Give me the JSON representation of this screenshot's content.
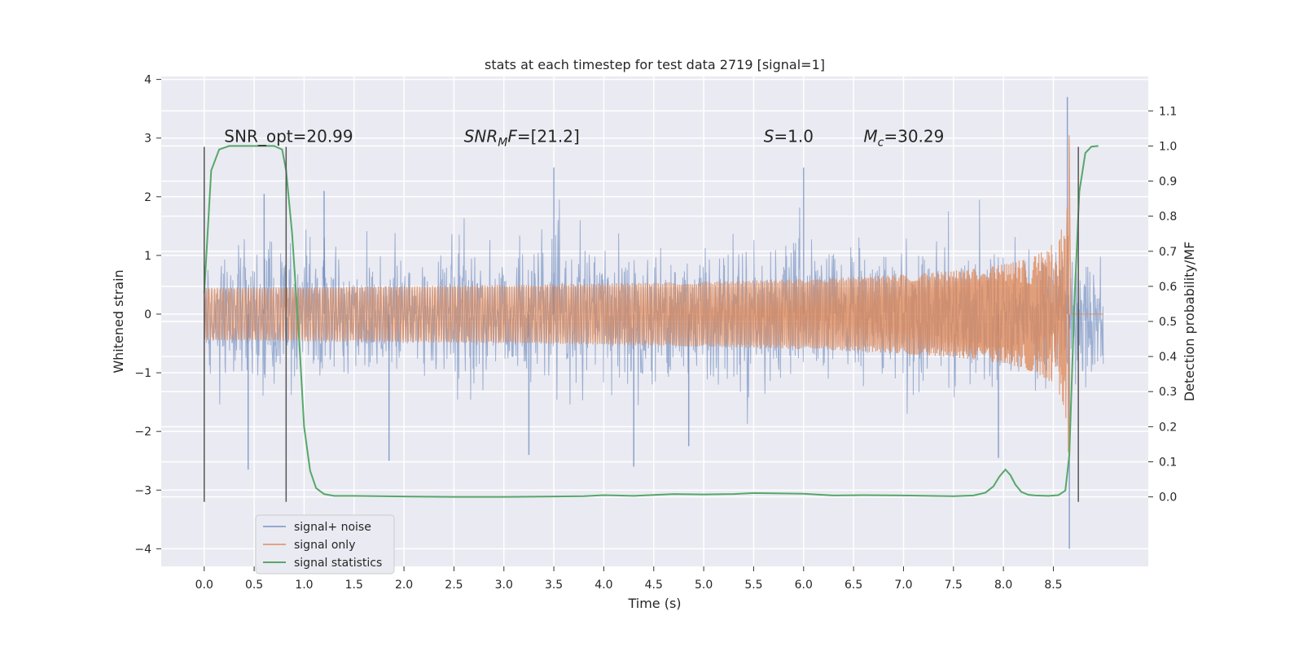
{
  "chart_data": {
    "type": "line",
    "title": "stats at each timestep for test data 2719 [signal=1]",
    "xlabel": "Time (s)",
    "ylabel": "Whitened strain",
    "y2label": "Detection probability/MF",
    "xlim": [
      -0.43,
      9.45
    ],
    "ylim": [
      -4.3,
      4.05
    ],
    "y2lim": [
      -0.198,
      1.198
    ],
    "x_ticks": [
      0.0,
      0.5,
      1.0,
      1.5,
      2.0,
      2.5,
      3.0,
      3.5,
      4.0,
      4.5,
      5.0,
      5.5,
      6.0,
      6.5,
      7.0,
      7.5,
      8.0,
      8.5
    ],
    "x_tick_labels": [
      "0.0",
      "0.5",
      "1.0",
      "1.5",
      "2.0",
      "2.5",
      "3.0",
      "3.5",
      "4.0",
      "4.5",
      "5.0",
      "5.5",
      "6.0",
      "6.5",
      "7.0",
      "7.5",
      "8.0",
      "8.5"
    ],
    "y_ticks": [
      -4,
      -3,
      -2,
      -1,
      0,
      1,
      2,
      3,
      4
    ],
    "y_tick_labels": [
      "−4",
      "−3",
      "−2",
      "−1",
      "0",
      "1",
      "2",
      "3",
      "4"
    ],
    "y2_ticks": [
      0.0,
      0.1,
      0.2,
      0.3,
      0.4,
      0.5,
      0.6,
      0.7,
      0.8,
      0.9,
      1.0,
      1.1
    ],
    "y2_tick_labels": [
      "0.0",
      "0.1",
      "0.2",
      "0.3",
      "0.4",
      "0.5",
      "0.6",
      "0.7",
      "0.8",
      "0.9",
      "1.0",
      "1.1"
    ],
    "grid": true,
    "legend_position": "lower-left",
    "annotations": [
      {
        "html": "SNR_opt=20.99",
        "x": 0.2,
        "y": 2.93
      },
      {
        "html": "<tspan font-style='italic'>SNR</tspan><tspan font-style='italic' font-size='14' dy='5'>M</tspan><tspan font-style='italic' dy='-5'>F</tspan>=[21.2]",
        "x": 2.6,
        "y": 2.93
      },
      {
        "html": "<tspan font-style='italic'>S</tspan>=1.0",
        "x": 5.6,
        "y": 2.93
      },
      {
        "html": "<tspan font-style='italic'>M</tspan><tspan font-style='italic' font-size='14' dy='5'>c</tspan><tspan dy='-5'>=30.29</tspan>",
        "x": 6.6,
        "y": 2.93
      }
    ],
    "vertical_lines": [
      {
        "x": 0.0,
        "y_from": -3.2,
        "y_to": 2.85
      },
      {
        "x": 0.82,
        "y_from": -3.2,
        "y_to": 2.85
      },
      {
        "x": 8.75,
        "y_from": -3.2,
        "y_to": 2.85
      }
    ],
    "series": [
      {
        "name": "signal+ noise",
        "color": "#4c72b0",
        "kind": "noise",
        "x_range": [
          0.0,
          9.0
        ],
        "envelope": 1.0,
        "notable_spikes": [
          {
            "x": 0.44,
            "y": -2.65
          },
          {
            "x": 0.6,
            "y": 2.05
          },
          {
            "x": 1.2,
            "y": 2.1
          },
          {
            "x": 1.85,
            "y": -2.5
          },
          {
            "x": 3.25,
            "y": -2.4
          },
          {
            "x": 3.5,
            "y": 2.5
          },
          {
            "x": 4.3,
            "y": -2.6
          },
          {
            "x": 4.85,
            "y": -2.25
          },
          {
            "x": 6.0,
            "y": 2.5
          },
          {
            "x": 7.95,
            "y": -2.45
          },
          {
            "x": 8.64,
            "y": 3.7
          },
          {
            "x": 8.66,
            "y": -4.0
          }
        ]
      },
      {
        "name": "signal only",
        "color": "#dd8452",
        "kind": "chirp",
        "x_range": [
          0.0,
          9.0
        ],
        "merger_time": 8.66,
        "peak_amplitude": 3.05
      },
      {
        "name": "signal statistics",
        "color": "#55a868",
        "axis": "right",
        "x": [
          0.0,
          0.07,
          0.15,
          0.25,
          0.4,
          0.55,
          0.7,
          0.78,
          0.82,
          0.88,
          0.95,
          1.0,
          1.06,
          1.12,
          1.2,
          1.3,
          1.5,
          2.0,
          2.5,
          3.0,
          3.5,
          3.8,
          4.0,
          4.3,
          4.7,
          5.0,
          5.3,
          5.5,
          6.0,
          6.3,
          6.6,
          7.0,
          7.5,
          7.7,
          7.82,
          7.9,
          7.96,
          8.02,
          8.07,
          8.12,
          8.18,
          8.25,
          8.32,
          8.45,
          8.55,
          8.62,
          8.66,
          8.71,
          8.76,
          8.82,
          8.88,
          8.95
        ],
        "y": [
          0.58,
          0.93,
          0.99,
          1.0,
          1.0,
          1.0,
          1.0,
          0.99,
          0.93,
          0.75,
          0.45,
          0.2,
          0.075,
          0.025,
          0.008,
          0.003,
          0.003,
          0.001,
          0.0,
          0.0,
          0.001,
          0.002,
          0.005,
          0.003,
          0.008,
          0.007,
          0.008,
          0.011,
          0.009,
          0.004,
          0.005,
          0.004,
          0.002,
          0.004,
          0.012,
          0.03,
          0.058,
          0.078,
          0.062,
          0.035,
          0.014,
          0.006,
          0.004,
          0.003,
          0.005,
          0.018,
          0.12,
          0.55,
          0.87,
          0.98,
          0.998,
          1.0
        ]
      }
    ]
  }
}
